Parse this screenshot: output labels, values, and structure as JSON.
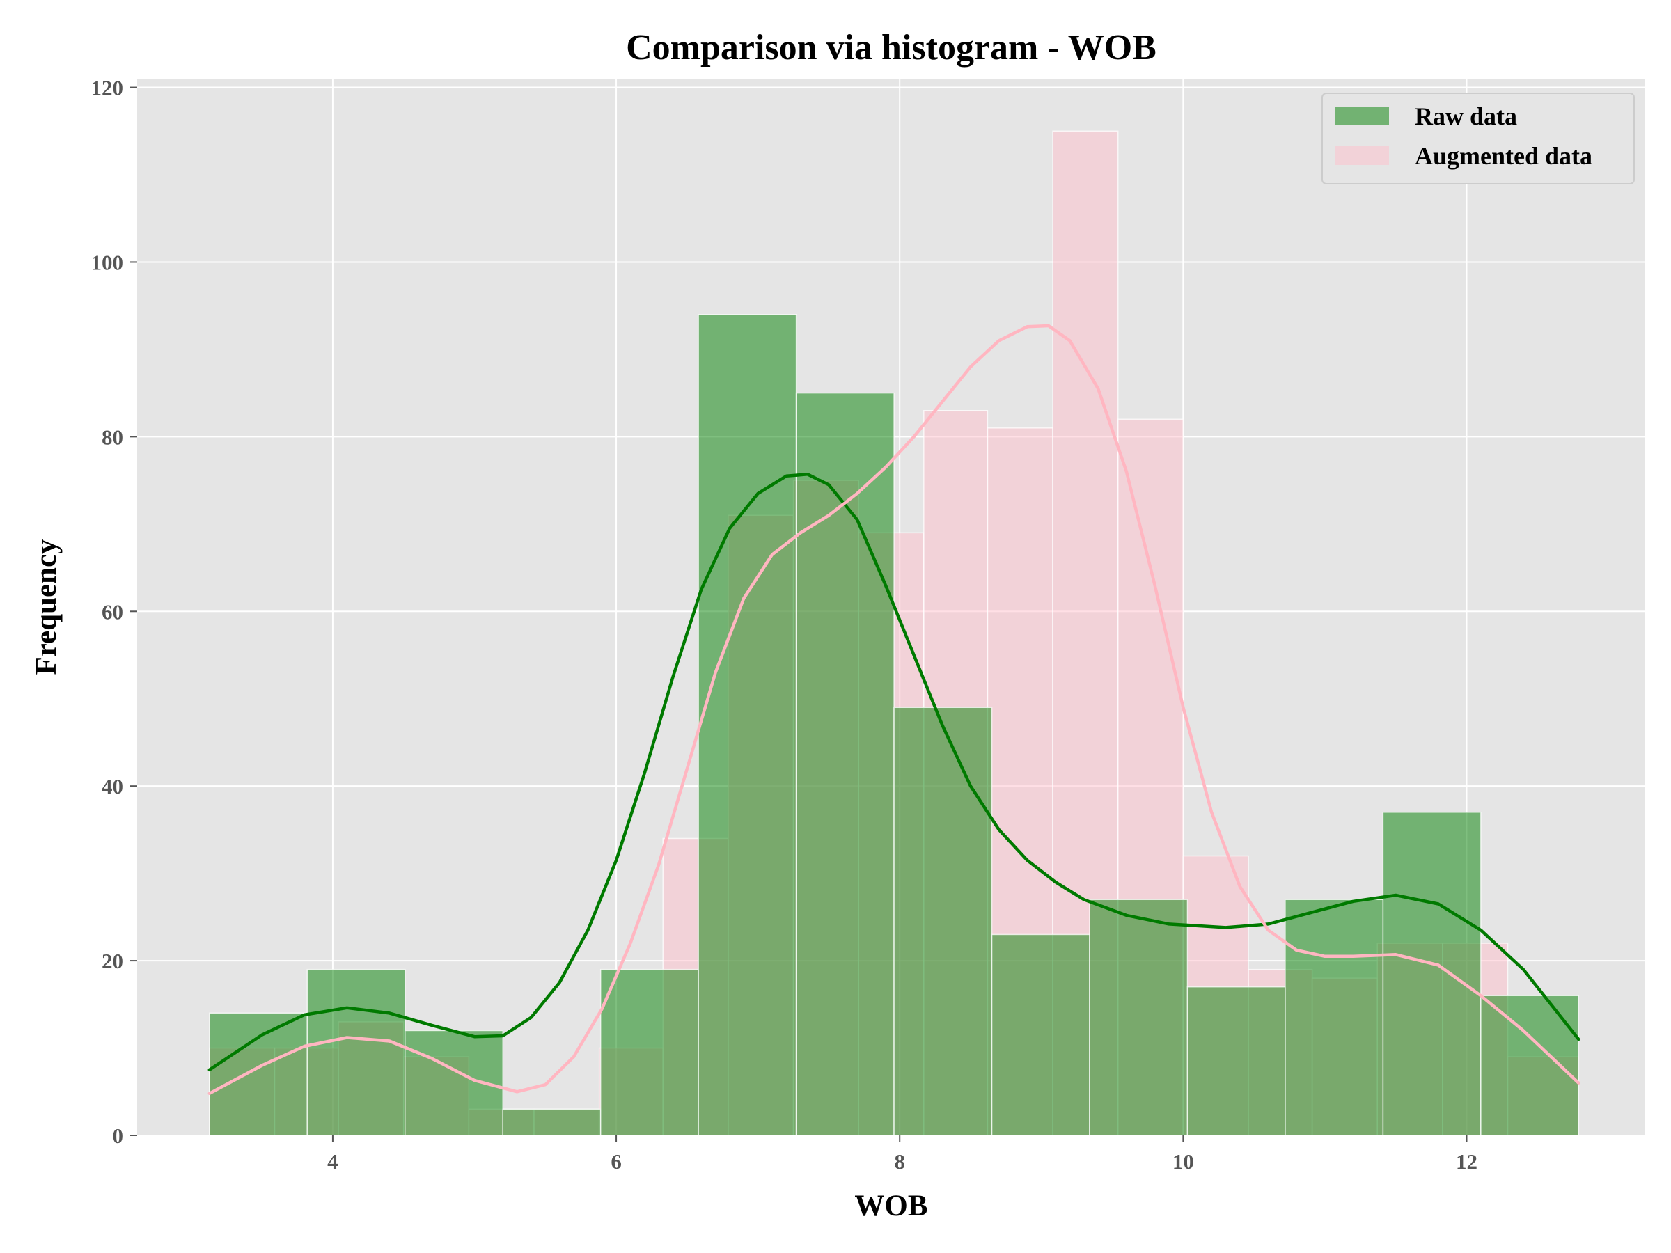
{
  "chart_data": {
    "type": "bar",
    "title": "Comparison via histogram - WOB",
    "xlabel": "WOB",
    "ylabel": "Frequency",
    "xlim": [
      2.62,
      13.26
    ],
    "ylim": [
      0,
      121
    ],
    "xticks": [
      4,
      6,
      8,
      10,
      12
    ],
    "yticks": [
      0,
      20,
      40,
      60,
      80,
      100,
      120
    ],
    "grid": true,
    "legend_position": "top-right",
    "colors": {
      "background": "#e5e5e5",
      "grid": "#ffffff",
      "raw_fill": "#008000",
      "raw_line": "#007a00",
      "aug_fill": "#ffc0cb",
      "aug_line": "#ffb6c1"
    },
    "series": [
      {
        "name": "Raw data",
        "bins": [
          {
            "x0": 3.13,
            "x1": 3.82,
            "y": 14
          },
          {
            "x0": 3.82,
            "x1": 4.51,
            "y": 19
          },
          {
            "x0": 4.51,
            "x1": 5.2,
            "y": 12
          },
          {
            "x0": 5.2,
            "x1": 5.89,
            "y": 3
          },
          {
            "x0": 5.89,
            "x1": 6.58,
            "y": 19
          },
          {
            "x0": 6.58,
            "x1": 7.27,
            "y": 94
          },
          {
            "x0": 7.27,
            "x1": 7.96,
            "y": 85
          },
          {
            "x0": 7.96,
            "x1": 8.65,
            "y": 49
          },
          {
            "x0": 8.65,
            "x1": 9.34,
            "y": 23
          },
          {
            "x0": 9.34,
            "x1": 10.03,
            "y": 27
          },
          {
            "x0": 10.03,
            "x1": 10.72,
            "y": 17
          },
          {
            "x0": 10.72,
            "x1": 11.41,
            "y": 27
          },
          {
            "x0": 11.41,
            "x1": 12.1,
            "y": 37
          },
          {
            "x0": 12.1,
            "x1": 12.79,
            "y": 16
          }
        ],
        "kde": [
          [
            3.13,
            7.5
          ],
          [
            3.5,
            11.5
          ],
          [
            3.8,
            13.8
          ],
          [
            4.1,
            14.6
          ],
          [
            4.4,
            14.0
          ],
          [
            4.7,
            12.6
          ],
          [
            5.0,
            11.3
          ],
          [
            5.2,
            11.4
          ],
          [
            5.4,
            13.5
          ],
          [
            5.6,
            17.5
          ],
          [
            5.8,
            23.5
          ],
          [
            6.0,
            31.5
          ],
          [
            6.2,
            41.5
          ],
          [
            6.4,
            52.5
          ],
          [
            6.6,
            62.5
          ],
          [
            6.8,
            69.5
          ],
          [
            7.0,
            73.5
          ],
          [
            7.2,
            75.5
          ],
          [
            7.35,
            75.7
          ],
          [
            7.5,
            74.5
          ],
          [
            7.7,
            70.5
          ],
          [
            7.9,
            63.0
          ],
          [
            8.1,
            55.0
          ],
          [
            8.3,
            47.0
          ],
          [
            8.5,
            40.0
          ],
          [
            8.7,
            35.0
          ],
          [
            8.9,
            31.5
          ],
          [
            9.1,
            29.0
          ],
          [
            9.3,
            27.0
          ],
          [
            9.6,
            25.2
          ],
          [
            9.9,
            24.2
          ],
          [
            10.3,
            23.8
          ],
          [
            10.6,
            24.2
          ],
          [
            10.9,
            25.5
          ],
          [
            11.2,
            26.8
          ],
          [
            11.5,
            27.5
          ],
          [
            11.8,
            26.5
          ],
          [
            12.1,
            23.5
          ],
          [
            12.4,
            19.0
          ],
          [
            12.79,
            11.0
          ]
        ]
      },
      {
        "name": "Augmented data",
        "bins": [
          {
            "x0": 3.13,
            "x1": 3.59,
            "y": 10
          },
          {
            "x0": 3.59,
            "x1": 4.04,
            "y": 10
          },
          {
            "x0": 4.04,
            "x1": 4.5,
            "y": 13
          },
          {
            "x0": 4.5,
            "x1": 4.96,
            "y": 9
          },
          {
            "x0": 4.96,
            "x1": 5.42,
            "y": 3
          },
          {
            "x0": 5.42,
            "x1": 5.88,
            "y": 3
          },
          {
            "x0": 5.88,
            "x1": 6.33,
            "y": 10
          },
          {
            "x0": 6.33,
            "x1": 6.79,
            "y": 34
          },
          {
            "x0": 6.79,
            "x1": 7.25,
            "y": 71
          },
          {
            "x0": 7.25,
            "x1": 7.71,
            "y": 75
          },
          {
            "x0": 7.71,
            "x1": 8.17,
            "y": 69
          },
          {
            "x0": 8.17,
            "x1": 8.62,
            "y": 83
          },
          {
            "x0": 8.62,
            "x1": 9.08,
            "y": 81
          },
          {
            "x0": 9.08,
            "x1": 9.54,
            "y": 115
          },
          {
            "x0": 9.54,
            "x1": 10.0,
            "y": 82
          },
          {
            "x0": 10.0,
            "x1": 10.46,
            "y": 32
          },
          {
            "x0": 10.46,
            "x1": 10.91,
            "y": 19
          },
          {
            "x0": 10.91,
            "x1": 11.37,
            "y": 18
          },
          {
            "x0": 11.37,
            "x1": 11.83,
            "y": 22
          },
          {
            "x0": 11.83,
            "x1": 12.29,
            "y": 22
          },
          {
            "x0": 12.29,
            "x1": 12.79,
            "y": 9
          }
        ],
        "kde": [
          [
            3.13,
            4.8
          ],
          [
            3.5,
            8.0
          ],
          [
            3.8,
            10.2
          ],
          [
            4.1,
            11.2
          ],
          [
            4.4,
            10.8
          ],
          [
            4.7,
            8.8
          ],
          [
            5.0,
            6.3
          ],
          [
            5.3,
            5.0
          ],
          [
            5.5,
            5.8
          ],
          [
            5.7,
            9.0
          ],
          [
            5.9,
            14.5
          ],
          [
            6.1,
            22.0
          ],
          [
            6.3,
            31.0
          ],
          [
            6.5,
            42.0
          ],
          [
            6.7,
            53.0
          ],
          [
            6.9,
            61.5
          ],
          [
            7.1,
            66.5
          ],
          [
            7.3,
            69.0
          ],
          [
            7.5,
            71.0
          ],
          [
            7.7,
            73.5
          ],
          [
            7.9,
            76.5
          ],
          [
            8.1,
            80.0
          ],
          [
            8.3,
            84.0
          ],
          [
            8.5,
            88.0
          ],
          [
            8.7,
            91.0
          ],
          [
            8.9,
            92.6
          ],
          [
            9.05,
            92.7
          ],
          [
            9.2,
            91.0
          ],
          [
            9.4,
            85.5
          ],
          [
            9.6,
            76.0
          ],
          [
            9.8,
            63.0
          ],
          [
            10.0,
            49.0
          ],
          [
            10.2,
            37.0
          ],
          [
            10.4,
            28.5
          ],
          [
            10.6,
            23.5
          ],
          [
            10.8,
            21.2
          ],
          [
            11.0,
            20.5
          ],
          [
            11.2,
            20.5
          ],
          [
            11.5,
            20.7
          ],
          [
            11.8,
            19.5
          ],
          [
            12.1,
            16.0
          ],
          [
            12.4,
            12.0
          ],
          [
            12.79,
            6.0
          ]
        ]
      }
    ]
  }
}
